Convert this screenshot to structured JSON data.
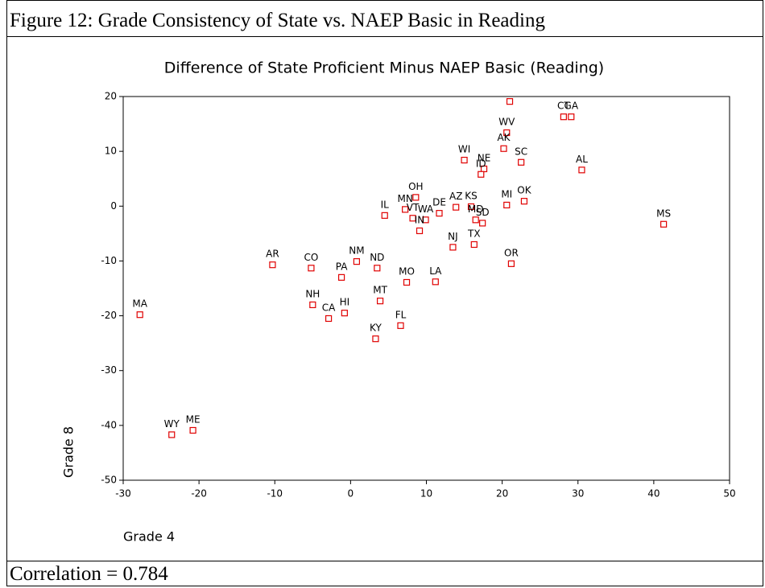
{
  "figure_title": "Figure 12: Grade Consistency of State vs. NAEP Basic in Reading",
  "footer": "Correlation = 0.784",
  "chart_data": {
    "type": "scatter",
    "title": "Difference of State Proficient Minus NAEP Basic (Reading)",
    "x_label": "Grade 4",
    "y_label": "Grade 8",
    "labels": [
      "MA",
      "WY",
      "ME",
      "AR",
      "CO",
      "NH",
      "CA",
      "PA",
      "HI",
      "NM",
      "ND",
      "KY",
      "MT",
      "FL",
      "MO",
      "LA",
      "IL",
      "MN",
      "VT",
      "OH",
      "WA",
      "IN",
      "DE",
      "AZ",
      "KS",
      "NJ",
      "TX",
      "MD",
      "SD",
      "WI",
      "NE",
      "ID",
      "WV",
      "AK",
      "SC",
      "MI",
      "OK",
      "OR",
      null,
      "CT",
      "GA",
      "AL",
      "MS"
    ],
    "x": [
      -27.8,
      -23.6,
      -20.8,
      -10.3,
      -5.2,
      -5.0,
      -2.9,
      -1.2,
      -0.8,
      0.8,
      3.5,
      3.3,
      3.9,
      6.6,
      7.4,
      11.2,
      4.5,
      7.2,
      8.2,
      8.6,
      9.9,
      9.1,
      11.7,
      13.9,
      15.9,
      13.5,
      16.3,
      16.5,
      17.4,
      15.0,
      17.6,
      17.2,
      20.6,
      20.2,
      22.5,
      20.6,
      22.9,
      21.2,
      21.0,
      28.1,
      29.1,
      30.5,
      41.3
    ],
    "series": [
      {
        "color": "#e00000",
        "values": [
          -19.8,
          -41.7,
          -40.9,
          -10.7,
          -11.3,
          -18.0,
          -20.5,
          -13.0,
          -19.5,
          -10.1,
          -11.3,
          -24.2,
          -17.3,
          -21.8,
          -13.9,
          -13.8,
          -1.7,
          -0.6,
          -2.2,
          1.6,
          -2.5,
          -4.5,
          -1.3,
          -0.2,
          -0.1,
          -7.5,
          -7.0,
          -2.5,
          -3.1,
          8.4,
          6.8,
          5.8,
          13.4,
          10.5,
          8.0,
          0.2,
          0.9,
          -10.5,
          19.1,
          16.3,
          16.3,
          6.6,
          -3.3
        ]
      }
    ],
    "xlim": [
      -30,
      50
    ],
    "xticks": [
      -30,
      -20,
      -10,
      0,
      10,
      20,
      30,
      40,
      50
    ],
    "ylim": [
      -50,
      20
    ],
    "yticks": [
      -50,
      -40,
      -30,
      -20,
      -10,
      0,
      10,
      20
    ]
  }
}
